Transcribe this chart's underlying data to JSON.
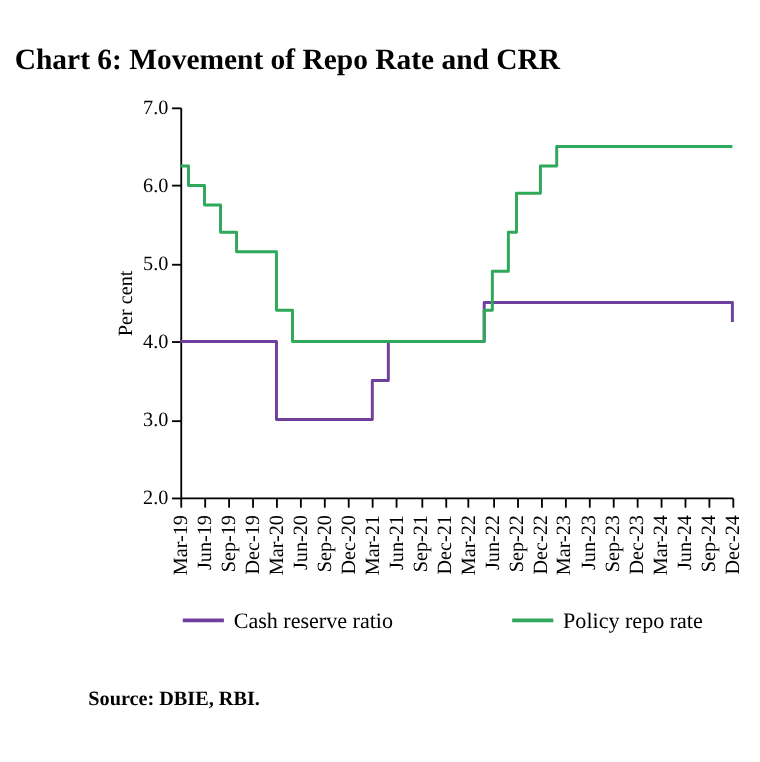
{
  "chart_data": {
    "type": "step",
    "title": "Chart 6: Movement of Repo Rate and CRR",
    "ylabel": "Per cent",
    "series": [
      {
        "name": "Cash reserve ratio",
        "color": "#6f3f9e",
        "x": [
          "2019-03",
          "2020-03",
          "2021-03",
          "2021-05",
          "2022-05",
          "2024-11",
          "2024-12"
        ],
        "values": [
          4.0,
          3.0,
          3.5,
          4.0,
          4.5,
          4.5,
          4.25
        ]
      },
      {
        "name": "Policy repo rate",
        "color": "#2fa85a",
        "x": [
          "2019-03",
          "2019-04",
          "2019-06",
          "2019-08",
          "2019-10",
          "2020-03",
          "2020-05",
          "2022-05",
          "2022-06",
          "2022-08",
          "2022-09",
          "2022-12",
          "2023-02",
          "2024-12"
        ],
        "values": [
          6.25,
          6.0,
          5.75,
          5.4,
          5.15,
          4.4,
          4.0,
          4.4,
          4.9,
          5.4,
          5.9,
          6.25,
          6.5,
          6.5
        ]
      }
    ],
    "xlim": [
      "2019-03",
      "2024-12"
    ],
    "xticks": [
      {
        "value": "2019-03",
        "label": "Mar-19"
      },
      {
        "value": "2019-06",
        "label": "Jun-19"
      },
      {
        "value": "2019-09",
        "label": "Sep-19"
      },
      {
        "value": "2019-12",
        "label": "Dec-19"
      },
      {
        "value": "2020-03",
        "label": "Mar-20"
      },
      {
        "value": "2020-06",
        "label": "Jun-20"
      },
      {
        "value": "2020-09",
        "label": "Sep-20"
      },
      {
        "value": "2020-12",
        "label": "Dec-20"
      },
      {
        "value": "2021-03",
        "label": "Mar-21"
      },
      {
        "value": "2021-06",
        "label": "Jun-21"
      },
      {
        "value": "2021-09",
        "label": "Sep-21"
      },
      {
        "value": "2021-12",
        "label": "Dec-21"
      },
      {
        "value": "2022-03",
        "label": "Mar-22"
      },
      {
        "value": "2022-06",
        "label": "Jun-22"
      },
      {
        "value": "2022-09",
        "label": "Sep-22"
      },
      {
        "value": "2022-12",
        "label": "Dec-22"
      },
      {
        "value": "2023-03",
        "label": "Mar-23"
      },
      {
        "value": "2023-06",
        "label": "Jun-23"
      },
      {
        "value": "2023-09",
        "label": "Sep-23"
      },
      {
        "value": "2023-12",
        "label": "Dec-23"
      },
      {
        "value": "2024-03",
        "label": "Mar-24"
      },
      {
        "value": "2024-06",
        "label": "Jun-24"
      },
      {
        "value": "2024-09",
        "label": "Sep-24"
      },
      {
        "value": "2024-12",
        "label": "Dec-24"
      }
    ],
    "ylim": [
      2.0,
      7.0
    ],
    "yticks": [
      {
        "value": 2,
        "label": "2.0"
      },
      {
        "value": 3,
        "label": "3.0"
      },
      {
        "value": 4,
        "label": "4.0"
      },
      {
        "value": 5,
        "label": "5.0"
      },
      {
        "value": 6,
        "label": "6.0"
      },
      {
        "value": 7,
        "label": "7.0"
      }
    ],
    "grid": false,
    "legend": "bottom",
    "line_style": "solid",
    "annotations": [
      "Source: DBIE, RBI."
    ]
  }
}
